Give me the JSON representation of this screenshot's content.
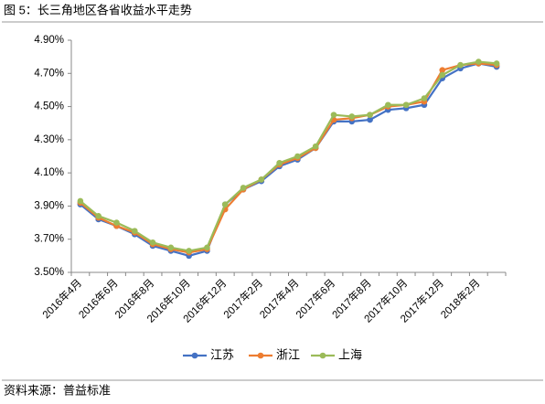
{
  "chart_data": {
    "type": "line",
    "title": "图 5：长三角地区各省收益水平走势",
    "source": "资料来源：普益标准",
    "categories": [
      "2016年4月",
      null,
      "2016年6月",
      null,
      "2016年8月",
      null,
      "2016年10月",
      null,
      "2016年12月",
      null,
      "2017年2月",
      null,
      "2017年4月",
      null,
      "2017年6月",
      null,
      "2017年8月",
      null,
      "2017年10月",
      null,
      "2017年12月",
      null,
      "2018年2月",
      null
    ],
    "series": [
      {
        "name": "江苏",
        "color": "#4472c4",
        "values": [
          3.91,
          3.82,
          3.78,
          3.73,
          3.66,
          3.63,
          3.6,
          3.63,
          3.91,
          4.0,
          4.05,
          4.14,
          4.18,
          4.25,
          4.41,
          4.41,
          4.42,
          4.48,
          4.49,
          4.51,
          4.67,
          4.73,
          4.76,
          4.74
        ]
      },
      {
        "name": "浙江",
        "color": "#ed7d31",
        "values": [
          3.92,
          3.83,
          3.78,
          3.74,
          3.67,
          3.64,
          3.62,
          3.64,
          3.88,
          4.0,
          4.06,
          4.15,
          4.19,
          4.25,
          4.42,
          4.43,
          4.45,
          4.5,
          4.51,
          4.53,
          4.72,
          4.75,
          4.76,
          4.75
        ]
      },
      {
        "name": "上海",
        "color": "#9bbb59",
        "values": [
          3.93,
          3.84,
          3.8,
          3.75,
          3.68,
          3.65,
          3.63,
          3.65,
          3.91,
          4.01,
          4.06,
          4.16,
          4.2,
          4.26,
          4.45,
          4.44,
          4.45,
          4.51,
          4.51,
          4.55,
          4.69,
          4.75,
          4.77,
          4.76
        ]
      }
    ],
    "ylim": [
      3.5,
      4.9
    ],
    "yticks": [
      {
        "value": 3.5,
        "label": "3.50%"
      },
      {
        "value": 3.7,
        "label": "3.70%"
      },
      {
        "value": 3.9,
        "label": "3.90%"
      },
      {
        "value": 4.1,
        "label": "4.10%"
      },
      {
        "value": 4.3,
        "label": "4.30%"
      },
      {
        "value": 4.5,
        "label": "4.50%"
      },
      {
        "value": 4.7,
        "label": "4.70%"
      },
      {
        "value": 4.9,
        "label": "4.90%"
      }
    ],
    "legend": "bottom"
  }
}
